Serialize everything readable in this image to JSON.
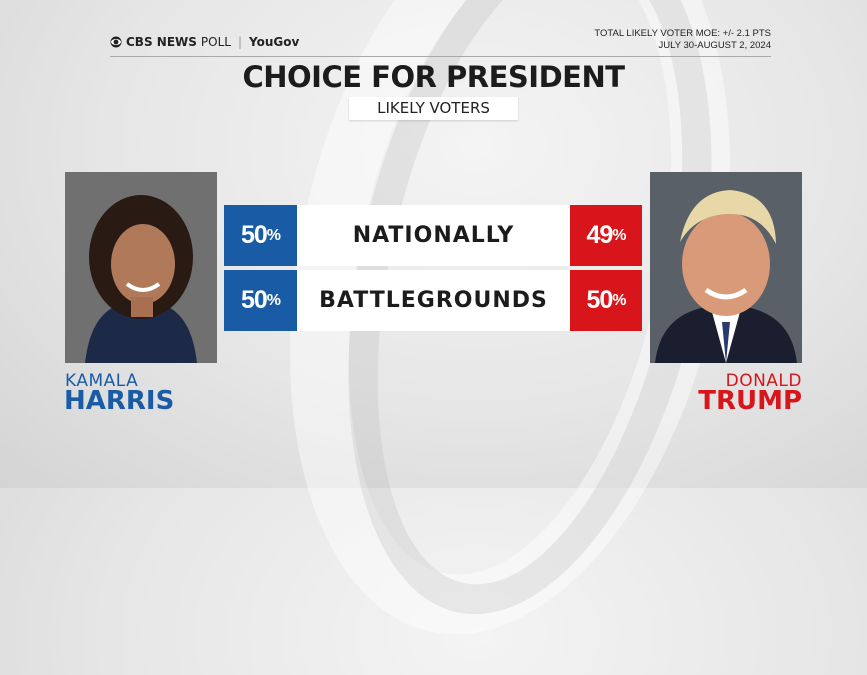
{
  "header": {
    "brand": "CBS NEWS",
    "brand_suffix": "POLL",
    "partner": "YouGov",
    "moe": "TOTAL LIKELY VOTER MOE: +/- 2.1 PTS",
    "dates": "JULY 30-AUGUST 2, 2024"
  },
  "title": "CHOICE FOR PRESIDENT",
  "subtitle": "LIKELY VOTERS",
  "colors": {
    "democrat": "#1a5ba6",
    "republican": "#d7151b"
  },
  "candidates": {
    "left": {
      "first": "KAMALA",
      "last": "HARRIS"
    },
    "right": {
      "first": "DONALD",
      "last": "TRUMP"
    }
  },
  "chart_data": {
    "type": "table",
    "title": "CHOICE FOR PRESIDENT",
    "subtitle": "LIKELY VOTERS",
    "categories": [
      "NATIONALLY",
      "BATTLEGROUNDS"
    ],
    "series": [
      {
        "name": "KAMALA HARRIS",
        "values": [
          50,
          50
        ],
        "labels": [
          "50",
          "50"
        ]
      },
      {
        "name": "DONALD TRUMP",
        "values": [
          49,
          50
        ],
        "labels": [
          "49",
          "50"
        ]
      }
    ],
    "unit": "%"
  }
}
